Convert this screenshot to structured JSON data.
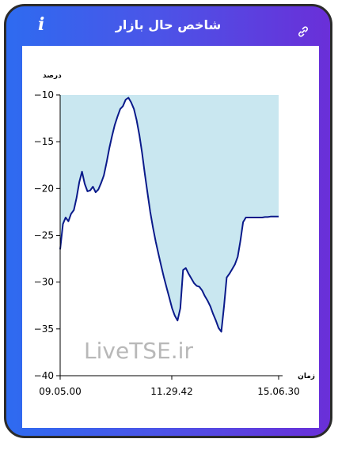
{
  "header": {
    "title": "شاخص حال بازار",
    "info_icon": "info-icon",
    "link_icon": "link-icon"
  },
  "watermark": "LiveTSE.ir",
  "chart_data": {
    "type": "area",
    "ylabel": "درصد",
    "xlabel": "زمان",
    "ylim": [
      -40,
      -10
    ],
    "yticks": [
      -10,
      -15,
      -20,
      -25,
      -30,
      -35,
      -40
    ],
    "xticks": [
      "09.05.00",
      "11.29.42",
      "15.06.30"
    ],
    "fill_color": "#c9e7f0",
    "line_color": "#0a1a8a",
    "series": [
      {
        "values": [
          -26.5,
          -23.8,
          -23.1,
          -23.5,
          -22.7,
          -22.3,
          -21,
          -19.3,
          -18.2,
          -19.5,
          -20.3,
          -20.2,
          -19.8,
          -20.4,
          -20.1,
          -19.4,
          -18.6,
          -17.2,
          -15.7,
          -14.4,
          -13.2,
          -12.3,
          -11.5,
          -11.2,
          -10.5,
          -10.3,
          -10.8,
          -11.5,
          -12.7,
          -14.3,
          -16.2,
          -18.4,
          -20.5,
          -22.5,
          -24.2,
          -25.7,
          -27,
          -28.3,
          -29.5,
          -30.6,
          -31.7,
          -32.8,
          -33.6,
          -34.1,
          -32.8,
          -28.7,
          -28.5,
          -29.1,
          -29.6,
          -30.1,
          -30.4,
          -30.5,
          -30.9,
          -31.5,
          -32,
          -32.6,
          -33.4,
          -34.1,
          -34.9,
          -35.3,
          -32.6,
          -29.5,
          -29.1,
          -28.6,
          -28.1,
          -27.3,
          -25.6,
          -23.6,
          -23.1,
          -23.1,
          -23.1,
          -23.1,
          -23.1,
          -23.1,
          -23.1,
          -23.05,
          -23.05,
          -23,
          -23,
          -23,
          -23
        ]
      }
    ]
  }
}
